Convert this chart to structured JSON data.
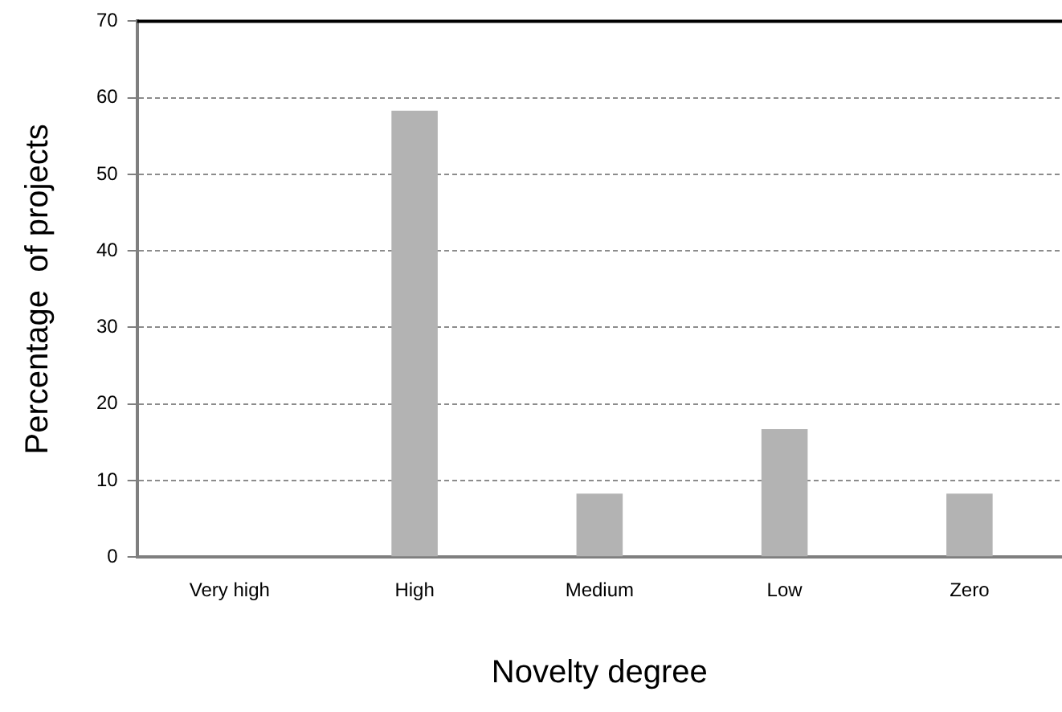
{
  "chart_data": {
    "type": "bar",
    "xlabel": "Novelty degree",
    "ylabel": "Percentage  of projects",
    "categories": [
      "Very high",
      "High",
      "Medium",
      "Low",
      "Zero"
    ],
    "values": [
      0,
      58.3,
      8.3,
      16.7,
      8.3
    ],
    "color": "#b3b3b3",
    "ylim": [
      0,
      70
    ],
    "yticks": [
      0,
      10,
      20,
      30,
      40,
      50,
      60,
      70
    ],
    "grid": "y",
    "legend": false
  }
}
